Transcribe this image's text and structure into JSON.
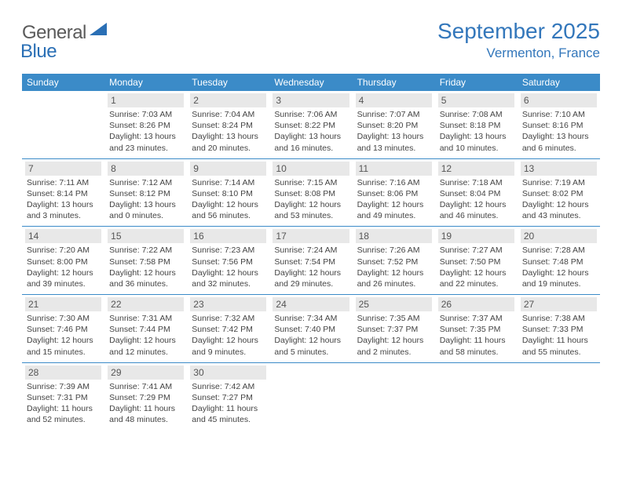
{
  "brand": {
    "text1": "General",
    "text2": "Blue",
    "text1_color": "#5a5a5a",
    "text2_color": "#2a6fb5",
    "shape_color": "#2a6fb5"
  },
  "title": {
    "month": "September 2025",
    "location": "Vermenton, France",
    "color": "#3377bb"
  },
  "colors": {
    "header_bg": "#3b8bc8",
    "header_text": "#ffffff",
    "daynum_bg": "#e8e8e8",
    "daynum_text": "#555555",
    "cell_text": "#444444",
    "divider": "#3b8bc8",
    "page_bg": "#ffffff"
  },
  "weekdays": [
    "Sunday",
    "Monday",
    "Tuesday",
    "Wednesday",
    "Thursday",
    "Friday",
    "Saturday"
  ],
  "weeks": [
    [
      null,
      {
        "n": "1",
        "sunrise": "7:03 AM",
        "sunset": "8:26 PM",
        "daylight": "13 hours and 23 minutes."
      },
      {
        "n": "2",
        "sunrise": "7:04 AM",
        "sunset": "8:24 PM",
        "daylight": "13 hours and 20 minutes."
      },
      {
        "n": "3",
        "sunrise": "7:06 AM",
        "sunset": "8:22 PM",
        "daylight": "13 hours and 16 minutes."
      },
      {
        "n": "4",
        "sunrise": "7:07 AM",
        "sunset": "8:20 PM",
        "daylight": "13 hours and 13 minutes."
      },
      {
        "n": "5",
        "sunrise": "7:08 AM",
        "sunset": "8:18 PM",
        "daylight": "13 hours and 10 minutes."
      },
      {
        "n": "6",
        "sunrise": "7:10 AM",
        "sunset": "8:16 PM",
        "daylight": "13 hours and 6 minutes."
      }
    ],
    [
      {
        "n": "7",
        "sunrise": "7:11 AM",
        "sunset": "8:14 PM",
        "daylight": "13 hours and 3 minutes."
      },
      {
        "n": "8",
        "sunrise": "7:12 AM",
        "sunset": "8:12 PM",
        "daylight": "13 hours and 0 minutes."
      },
      {
        "n": "9",
        "sunrise": "7:14 AM",
        "sunset": "8:10 PM",
        "daylight": "12 hours and 56 minutes."
      },
      {
        "n": "10",
        "sunrise": "7:15 AM",
        "sunset": "8:08 PM",
        "daylight": "12 hours and 53 minutes."
      },
      {
        "n": "11",
        "sunrise": "7:16 AM",
        "sunset": "8:06 PM",
        "daylight": "12 hours and 49 minutes."
      },
      {
        "n": "12",
        "sunrise": "7:18 AM",
        "sunset": "8:04 PM",
        "daylight": "12 hours and 46 minutes."
      },
      {
        "n": "13",
        "sunrise": "7:19 AM",
        "sunset": "8:02 PM",
        "daylight": "12 hours and 43 minutes."
      }
    ],
    [
      {
        "n": "14",
        "sunrise": "7:20 AM",
        "sunset": "8:00 PM",
        "daylight": "12 hours and 39 minutes."
      },
      {
        "n": "15",
        "sunrise": "7:22 AM",
        "sunset": "7:58 PM",
        "daylight": "12 hours and 36 minutes."
      },
      {
        "n": "16",
        "sunrise": "7:23 AM",
        "sunset": "7:56 PM",
        "daylight": "12 hours and 32 minutes."
      },
      {
        "n": "17",
        "sunrise": "7:24 AM",
        "sunset": "7:54 PM",
        "daylight": "12 hours and 29 minutes."
      },
      {
        "n": "18",
        "sunrise": "7:26 AM",
        "sunset": "7:52 PM",
        "daylight": "12 hours and 26 minutes."
      },
      {
        "n": "19",
        "sunrise": "7:27 AM",
        "sunset": "7:50 PM",
        "daylight": "12 hours and 22 minutes."
      },
      {
        "n": "20",
        "sunrise": "7:28 AM",
        "sunset": "7:48 PM",
        "daylight": "12 hours and 19 minutes."
      }
    ],
    [
      {
        "n": "21",
        "sunrise": "7:30 AM",
        "sunset": "7:46 PM",
        "daylight": "12 hours and 15 minutes."
      },
      {
        "n": "22",
        "sunrise": "7:31 AM",
        "sunset": "7:44 PM",
        "daylight": "12 hours and 12 minutes."
      },
      {
        "n": "23",
        "sunrise": "7:32 AM",
        "sunset": "7:42 PM",
        "daylight": "12 hours and 9 minutes."
      },
      {
        "n": "24",
        "sunrise": "7:34 AM",
        "sunset": "7:40 PM",
        "daylight": "12 hours and 5 minutes."
      },
      {
        "n": "25",
        "sunrise": "7:35 AM",
        "sunset": "7:37 PM",
        "daylight": "12 hours and 2 minutes."
      },
      {
        "n": "26",
        "sunrise": "7:37 AM",
        "sunset": "7:35 PM",
        "daylight": "11 hours and 58 minutes."
      },
      {
        "n": "27",
        "sunrise": "7:38 AM",
        "sunset": "7:33 PM",
        "daylight": "11 hours and 55 minutes."
      }
    ],
    [
      {
        "n": "28",
        "sunrise": "7:39 AM",
        "sunset": "7:31 PM",
        "daylight": "11 hours and 52 minutes."
      },
      {
        "n": "29",
        "sunrise": "7:41 AM",
        "sunset": "7:29 PM",
        "daylight": "11 hours and 48 minutes."
      },
      {
        "n": "30",
        "sunrise": "7:42 AM",
        "sunset": "7:27 PM",
        "daylight": "11 hours and 45 minutes."
      },
      null,
      null,
      null,
      null
    ]
  ],
  "labels": {
    "sunrise": "Sunrise:",
    "sunset": "Sunset:",
    "daylight": "Daylight:"
  }
}
